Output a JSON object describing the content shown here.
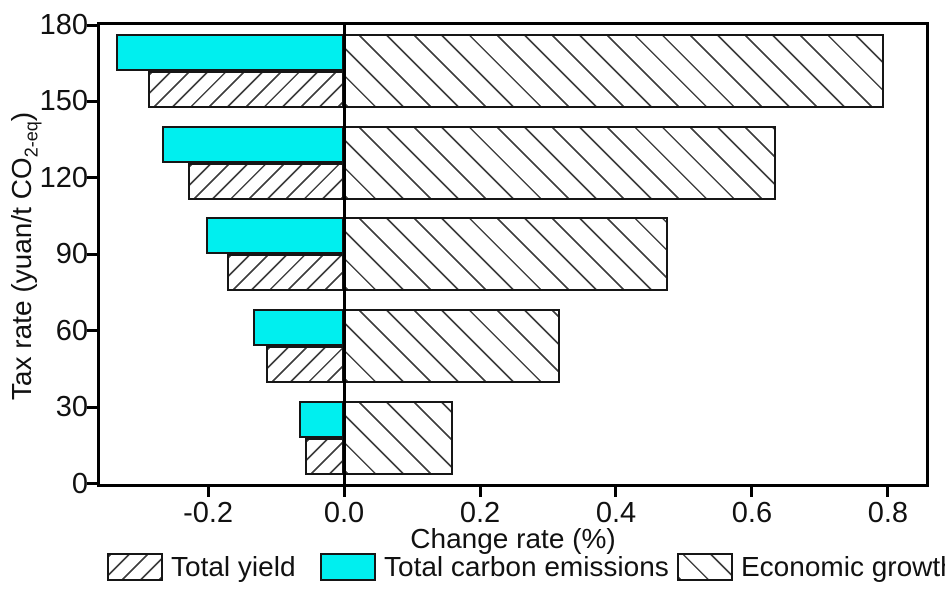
{
  "chart_data": {
    "type": "bar",
    "orientation": "horizontal",
    "title": "",
    "xlabel": "Change rate (%)",
    "ylabel": "Tax rate (yuan/t CO2-eq)",
    "ylabel_parts": {
      "main": "Tax rate (yuan/t CO",
      "sub": "2-eq",
      "close": ")"
    },
    "categories": [
      "30",
      "60",
      "90",
      "120",
      "150"
    ],
    "series": [
      {
        "name": "Total yield",
        "pattern": "forward-diagonal-hatch",
        "fill": "#ffffff",
        "values": [
          -0.057,
          -0.115,
          -0.172,
          -0.229,
          -0.288
        ]
      },
      {
        "name": "Total carbon emissions",
        "pattern": "solid",
        "fill": "#00efef",
        "values": [
          -0.067,
          -0.134,
          -0.203,
          -0.268,
          -0.335
        ]
      },
      {
        "name": "Economic growth",
        "pattern": "backward-diagonal-hatch",
        "fill": "#ffffff",
        "values": [
          0.16,
          0.317,
          0.476,
          0.635,
          0.794
        ]
      }
    ],
    "x_ticks": [
      -0.2,
      0.0,
      0.2,
      0.4,
      0.6,
      0.8
    ],
    "x_tick_labels": [
      "-0.2",
      "0.0",
      "0.2",
      "0.4",
      "0.6",
      "0.8"
    ],
    "y_ticks": [
      0,
      30,
      60,
      90,
      120,
      150,
      180
    ],
    "y_tick_labels": [
      "0",
      "30",
      "60",
      "90",
      "120",
      "150",
      "180"
    ],
    "xlim": [
      -0.359,
      0.856
    ],
    "ylim": [
      0,
      180
    ],
    "grid": false,
    "legend_position": "bottom",
    "colors": {
      "axis": "#000000",
      "bar_border": "#161616",
      "hatch_line": "#3d3d3d",
      "cyan": "#00efef",
      "background": "#ffffff"
    }
  }
}
